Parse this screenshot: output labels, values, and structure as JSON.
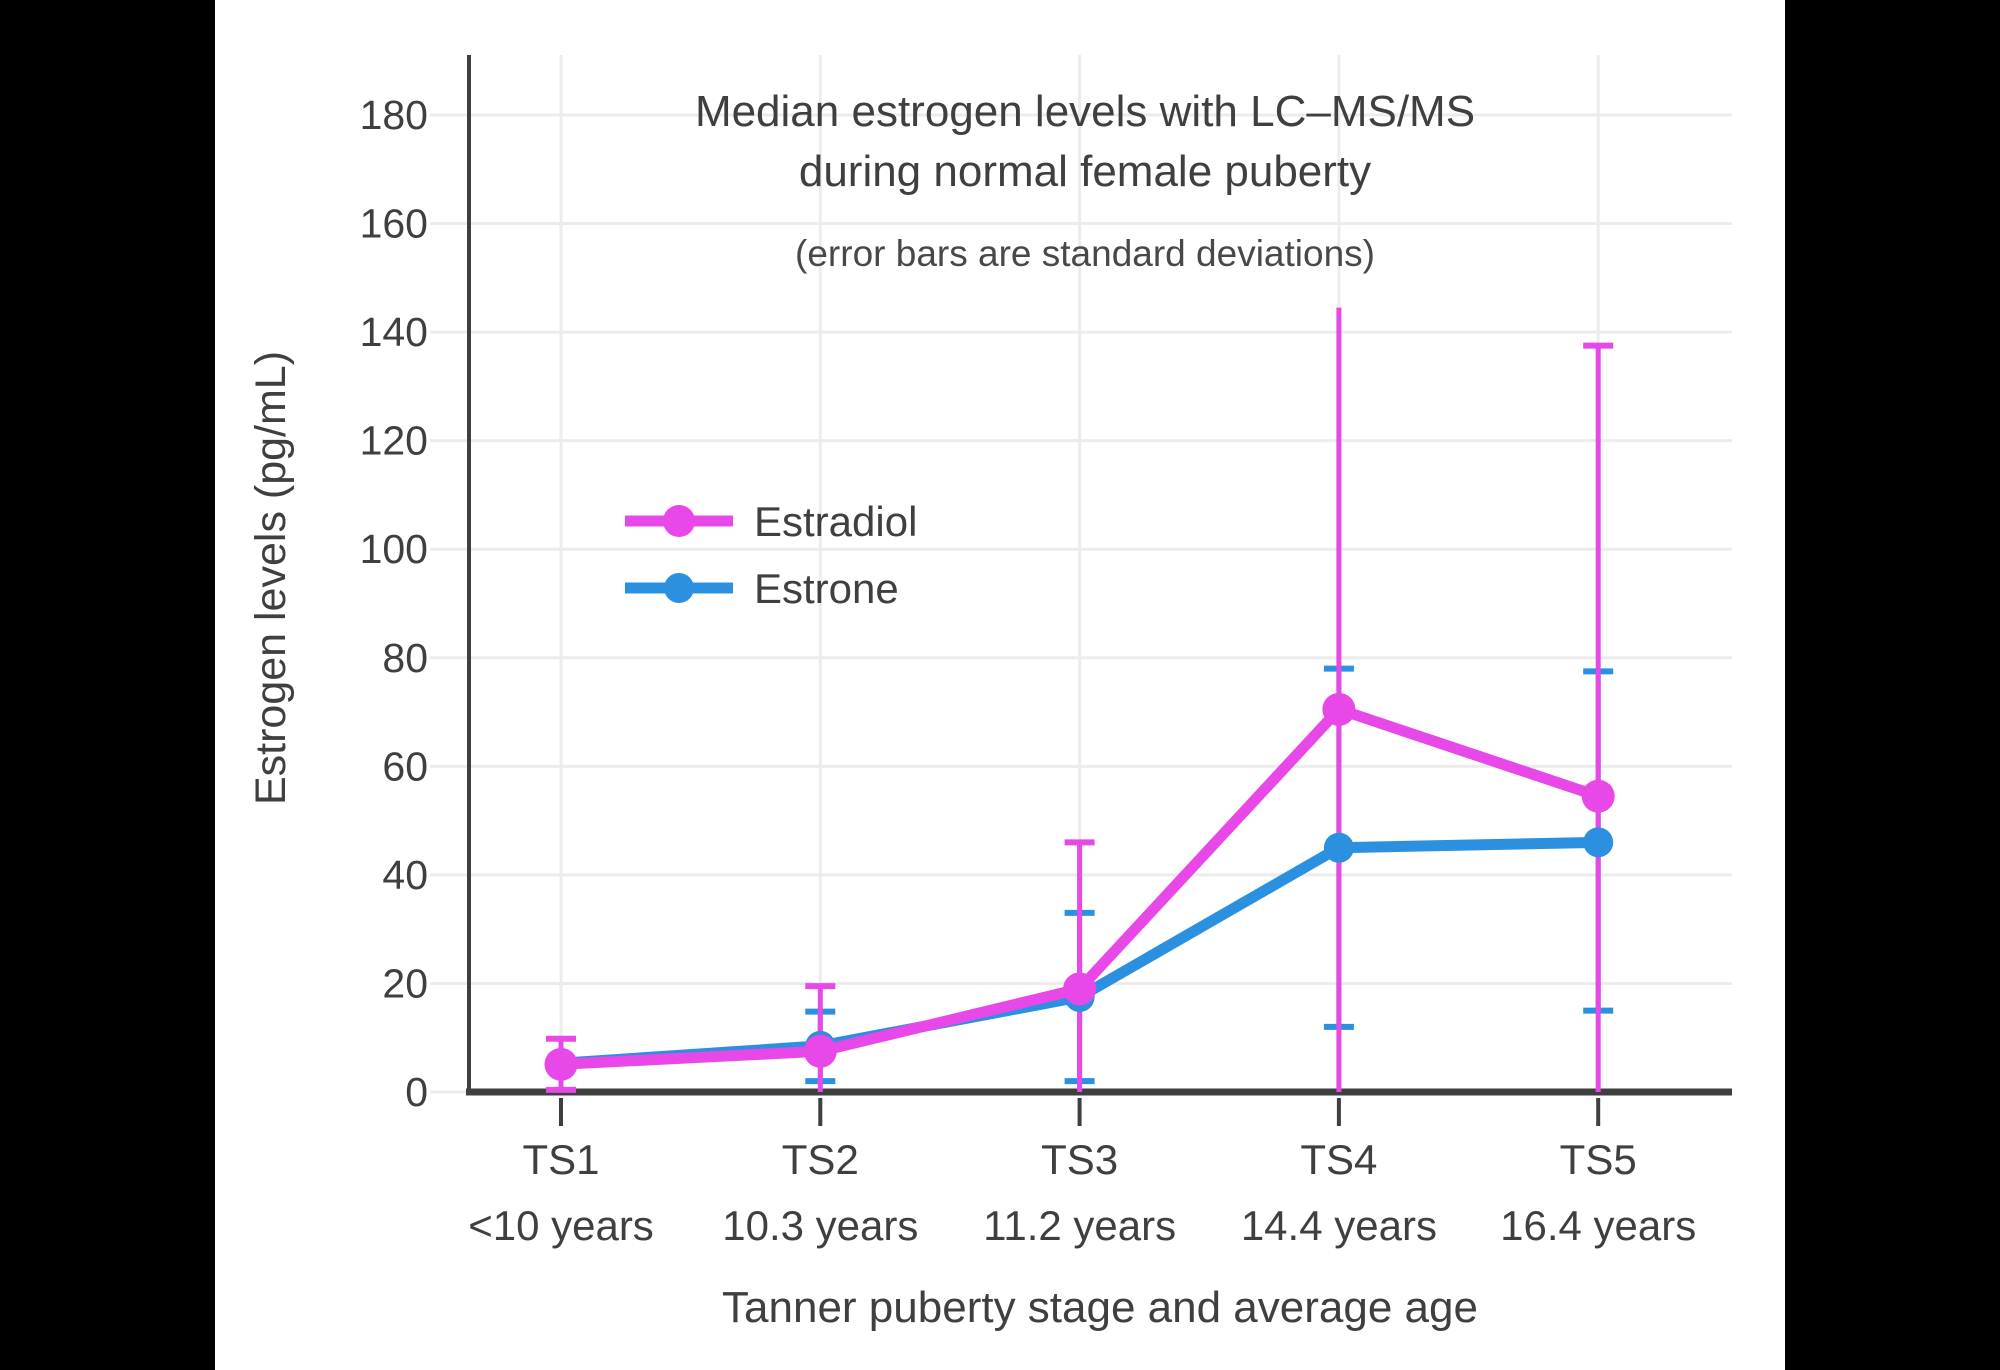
{
  "frame": {
    "background": "#000000",
    "canvas_background": "#ffffff"
  },
  "palette": {
    "grid": "#ececec",
    "axis": "#3f3f3f",
    "text": "#3f3f3f",
    "subtitle_text": "#484848"
  },
  "chart_data": {
    "type": "line",
    "title_line1": "Median estrogen levels with LC–MS/MS",
    "title_line2": "during normal female puberty",
    "subtitle": "(error bars are standard deviations)",
    "ylabel": "Estrogen levels (pg/mL)",
    "xlabel": "Tanner puberty stage and average age",
    "categories": [
      "TS1",
      "TS2",
      "TS3",
      "TS4",
      "TS5"
    ],
    "category_ages": [
      "<10 years",
      "10.3 years",
      "11.2 years",
      "14.4 years",
      "16.4 years"
    ],
    "y_ticks": [
      0,
      20,
      40,
      60,
      80,
      100,
      120,
      140,
      160,
      180
    ],
    "ylim": [
      0,
      191
    ],
    "grid": true,
    "legend_position": "inside-upper-left",
    "error_bar_meaning": "standard deviation",
    "series": [
      {
        "name": "Estradiol",
        "color": "#E848E8",
        "values": [
          5.1,
          7.5,
          19,
          70.5,
          54.5
        ],
        "err_top": [
          9.8,
          19.5,
          46,
          144.5,
          137.5
        ],
        "err_bottom": [
          0.4,
          0,
          0,
          0,
          0
        ],
        "cap_top": [
          true,
          true,
          true,
          false,
          true
        ],
        "cap_bottom": [
          true,
          false,
          false,
          false,
          false
        ],
        "point_radius": 16.5
      },
      {
        "name": "Estrone",
        "color": "#2B90E0",
        "values": [
          5.3,
          8.5,
          17.5,
          45,
          46
        ],
        "err_top": [
          null,
          14.8,
          33,
          78,
          77.5
        ],
        "err_bottom": [
          null,
          2,
          2,
          12,
          15
        ],
        "cap_top": [
          false,
          true,
          true,
          true,
          true
        ],
        "cap_bottom": [
          false,
          true,
          true,
          true,
          true
        ],
        "point_radius": 15
      }
    ]
  }
}
